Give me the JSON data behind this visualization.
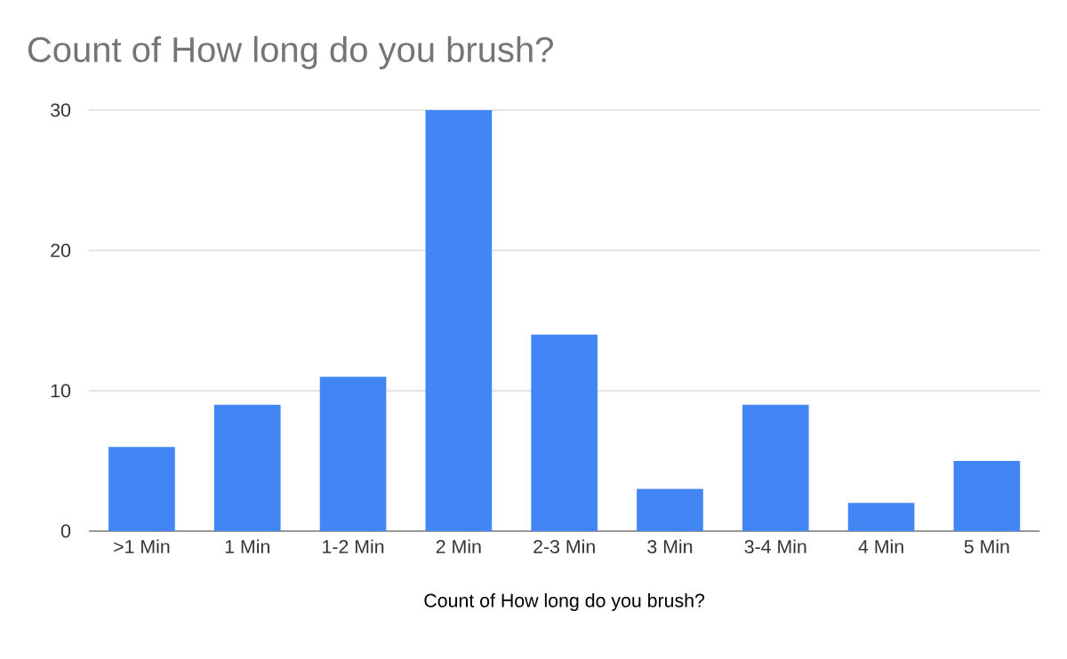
{
  "chart_data": {
    "type": "bar",
    "title": "Count of How long do you brush?",
    "xlabel": "Count of How long do you brush?",
    "categories": [
      ">1 Min",
      "1 Min",
      "1-2 Min",
      "2 Min",
      "2-3 Min",
      "3 Min",
      "3-4 Min",
      "4 Min",
      "5 Min"
    ],
    "values": [
      6,
      9,
      11,
      30,
      14,
      3,
      9,
      2,
      5
    ],
    "color": "#4285f4",
    "ylim": [
      0,
      30
    ],
    "yticks": [
      0,
      10,
      20,
      30
    ],
    "grid": "y"
  }
}
